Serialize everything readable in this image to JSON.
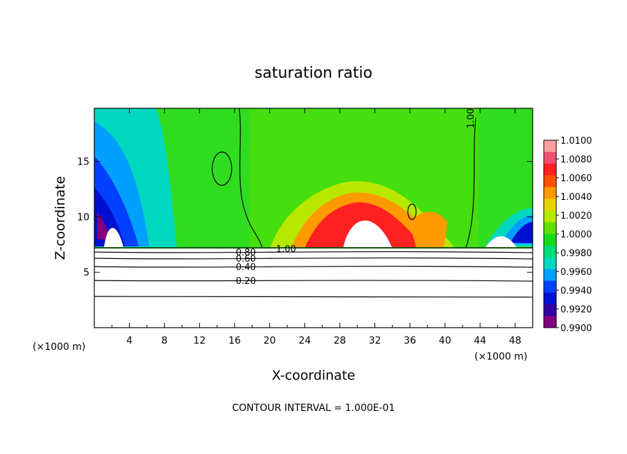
{
  "chart_data": {
    "type": "heatmap",
    "title": "saturation ratio",
    "xlabel": "X-coordinate",
    "ylabel": "Z-coordinate",
    "x_unit": "(×1000 m)",
    "x_unit_right": "(×1000 m)",
    "xlim": [
      0,
      50
    ],
    "ylim": [
      0,
      19.8
    ],
    "xticks": [
      "4",
      "8",
      "12",
      "16",
      "20",
      "24",
      "28",
      "32",
      "36",
      "40",
      "44",
      "48"
    ],
    "yticks": [
      "5",
      "10",
      "15"
    ],
    "colorbar": {
      "labels": [
        "1.0100",
        "1.0080",
        "1.0060",
        "1.0040",
        "1.0020",
        "1.0000",
        "0.9980",
        "0.9960",
        "0.9940",
        "0.9920",
        "0.9900"
      ],
      "range": [
        0.99,
        1.01
      ],
      "colors": [
        "#f8a0a0",
        "#f05070",
        "#ff2020",
        "#ff5000",
        "#ff9a00",
        "#e8d400",
        "#b8e800",
        "#60e000",
        "#18dc18",
        "#00dc78",
        "#00d8c0",
        "#00a0ff",
        "#0040ff",
        "#0010d0",
        "#3000a0",
        "#800080"
      ]
    },
    "contour_labels": [
      "1.00",
      "1.00",
      "0.80",
      "0.60",
      "0.40",
      "0.20"
    ],
    "footer": "CONTOUR INTERVAL = 1.000E-01"
  }
}
